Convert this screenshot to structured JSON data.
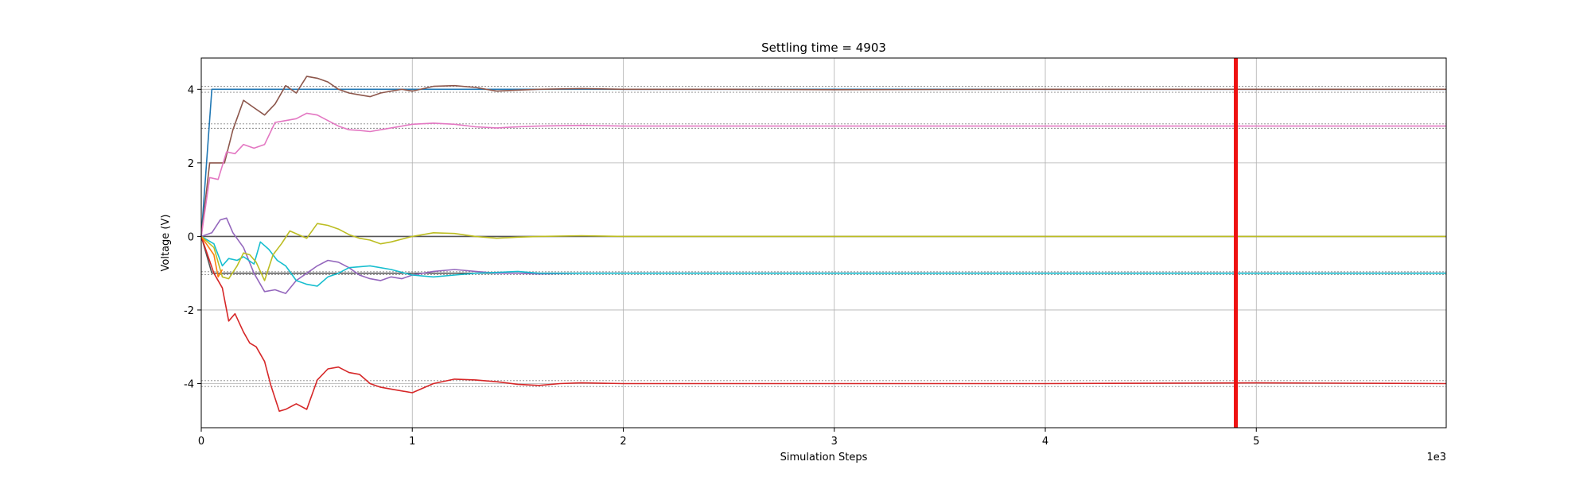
{
  "chart_data": {
    "type": "line",
    "title": "Settling time = 4903",
    "xlabel": "Simulation Steps",
    "ylabel": "Voltage (V)",
    "x_offset_label": "1e3",
    "xlim": [
      0,
      5900
    ],
    "ylim": [
      -5.2,
      4.85
    ],
    "x_ticks": [
      0,
      1000,
      2000,
      3000,
      4000,
      5000
    ],
    "x_tick_labels": [
      "0",
      "1",
      "2",
      "3",
      "4",
      "5"
    ],
    "y_ticks": [
      -4,
      -2,
      0,
      2,
      4
    ],
    "y_tick_labels": [
      "-4",
      "-2",
      "0",
      "2",
      "4"
    ],
    "grid": true,
    "settling_time": 4903,
    "settling_line_color": "#ee1111",
    "tolerance_bands": [
      {
        "center": 4,
        "half_width": 0.08
      },
      {
        "center": 3,
        "half_width": 0.06
      },
      {
        "center": -1,
        "half_width": 0.04
      },
      {
        "center": -4,
        "half_width": 0.08
      }
    ],
    "series": [
      {
        "color": "#1f77b4",
        "x": [
          0,
          50,
          5900
        ],
        "y": [
          0,
          4.0,
          4.0
        ]
      },
      {
        "color": "#555555",
        "x": [
          0,
          5900
        ],
        "y": [
          0,
          0
        ]
      },
      {
        "color": "#555555",
        "x": [
          0,
          50,
          5900
        ],
        "y": [
          0,
          -1.0,
          -1.0
        ]
      },
      {
        "color": "#8c564b",
        "x": [
          0,
          40,
          80,
          110,
          150,
          200,
          250,
          300,
          350,
          400,
          450,
          500,
          550,
          600,
          650,
          700,
          750,
          800,
          850,
          900,
          950,
          1000,
          1100,
          1200,
          1300,
          1400,
          1500,
          1600,
          1800,
          2000,
          2500,
          3000,
          4000,
          5000,
          5900
        ],
        "y": [
          0,
          2.0,
          2.0,
          2.0,
          2.9,
          3.7,
          3.5,
          3.3,
          3.6,
          4.1,
          3.9,
          4.35,
          4.3,
          4.2,
          4.0,
          3.9,
          3.85,
          3.8,
          3.9,
          3.95,
          4.0,
          3.95,
          4.08,
          4.1,
          4.05,
          3.95,
          3.98,
          4.0,
          4.02,
          4.0,
          4.0,
          3.99,
          4.0,
          4.0,
          4.0
        ]
      },
      {
        "color": "#e377c2",
        "x": [
          0,
          40,
          80,
          120,
          160,
          200,
          250,
          300,
          350,
          400,
          450,
          500,
          550,
          600,
          650,
          700,
          750,
          800,
          900,
          1000,
          1100,
          1200,
          1300,
          1400,
          1500,
          1600,
          1800,
          2000,
          2500,
          3000,
          4000,
          5000,
          5900
        ],
        "y": [
          0,
          1.6,
          1.55,
          2.3,
          2.25,
          2.5,
          2.4,
          2.5,
          3.1,
          3.15,
          3.2,
          3.35,
          3.3,
          3.15,
          3.0,
          2.9,
          2.88,
          2.85,
          2.95,
          3.05,
          3.08,
          3.05,
          2.98,
          2.95,
          2.98,
          3.0,
          3.02,
          3.0,
          3.0,
          3.0,
          3.0,
          3.0,
          3.0
        ]
      },
      {
        "color": "#d62728",
        "x": [
          0,
          60,
          100,
          130,
          160,
          200,
          230,
          260,
          300,
          330,
          370,
          400,
          450,
          500,
          550,
          600,
          650,
          700,
          750,
          800,
          850,
          900,
          1000,
          1100,
          1200,
          1300,
          1400,
          1500,
          1600,
          1700,
          1800,
          2000,
          2500,
          3000,
          4000,
          5000,
          5900
        ],
        "y": [
          0,
          -1.0,
          -1.4,
          -2.3,
          -2.1,
          -2.6,
          -2.9,
          -3.0,
          -3.4,
          -4.05,
          -4.75,
          -4.7,
          -4.55,
          -4.7,
          -3.9,
          -3.6,
          -3.55,
          -3.7,
          -3.75,
          -4.0,
          -4.1,
          -4.15,
          -4.25,
          -4.0,
          -3.88,
          -3.9,
          -3.95,
          -4.02,
          -4.05,
          -4.0,
          -3.98,
          -4.0,
          -4.0,
          -4.0,
          -4.0,
          -3.98,
          -4.0
        ]
      },
      {
        "color": "#9467bd",
        "x": [
          0,
          50,
          90,
          120,
          150,
          200,
          250,
          300,
          350,
          400,
          450,
          500,
          550,
          600,
          650,
          700,
          750,
          800,
          850,
          900,
          950,
          1000,
          1100,
          1200,
          1300,
          1400,
          1500,
          1600,
          1800,
          2000,
          2500,
          3000,
          4000,
          5000,
          5900
        ],
        "y": [
          0,
          0.1,
          0.45,
          0.5,
          0.1,
          -0.3,
          -1.0,
          -1.5,
          -1.45,
          -1.55,
          -1.2,
          -1.0,
          -0.8,
          -0.65,
          -0.7,
          -0.85,
          -1.05,
          -1.15,
          -1.2,
          -1.1,
          -1.15,
          -1.05,
          -0.95,
          -0.9,
          -0.95,
          -1.0,
          -1.0,
          -1.02,
          -1.0,
          -1.0,
          -1.0,
          -1.0,
          -1.0,
          -1.0,
          -1.0
        ]
      },
      {
        "color": "#17becf",
        "x": [
          0,
          60,
          100,
          130,
          170,
          200,
          250,
          280,
          320,
          360,
          400,
          450,
          500,
          550,
          600,
          650,
          700,
          800,
          900,
          1000,
          1100,
          1200,
          1300,
          1400,
          1500,
          1600,
          1800,
          2000,
          2500,
          3000,
          4000,
          5000,
          5900
        ],
        "y": [
          0,
          -0.2,
          -0.8,
          -0.6,
          -0.65,
          -0.55,
          -0.75,
          -0.15,
          -0.35,
          -0.65,
          -0.8,
          -1.2,
          -1.3,
          -1.35,
          -1.1,
          -1.0,
          -0.85,
          -0.8,
          -0.9,
          -1.05,
          -1.1,
          -1.05,
          -1.0,
          -0.98,
          -0.95,
          -1.0,
          -1.0,
          -1.0,
          -1.0,
          -1.0,
          -1.0,
          -1.0,
          -1.0
        ]
      },
      {
        "color": "#bcbd22",
        "x": [
          0,
          60,
          100,
          130,
          170,
          200,
          230,
          260,
          300,
          340,
          380,
          420,
          460,
          500,
          550,
          600,
          650,
          700,
          750,
          800,
          850,
          900,
          1000,
          1100,
          1200,
          1300,
          1400,
          1500,
          1600,
          1800,
          2000,
          2500,
          3000,
          4000,
          5000,
          5900
        ],
        "y": [
          0,
          -0.3,
          -1.1,
          -1.15,
          -0.8,
          -0.45,
          -0.5,
          -0.7,
          -1.2,
          -0.5,
          -0.2,
          0.15,
          0.05,
          -0.05,
          0.35,
          0.3,
          0.2,
          0.05,
          -0.05,
          -0.1,
          -0.2,
          -0.15,
          0.0,
          0.1,
          0.08,
          0.0,
          -0.05,
          -0.02,
          0.0,
          0.02,
          0.0,
          0.0,
          0.0,
          0.0,
          0.0,
          0.0
        ]
      },
      {
        "color": "#ff7f0e",
        "x": [
          0,
          60,
          80,
          100
        ],
        "y": [
          0,
          -0.5,
          -1.1,
          -0.9
        ]
      }
    ]
  }
}
